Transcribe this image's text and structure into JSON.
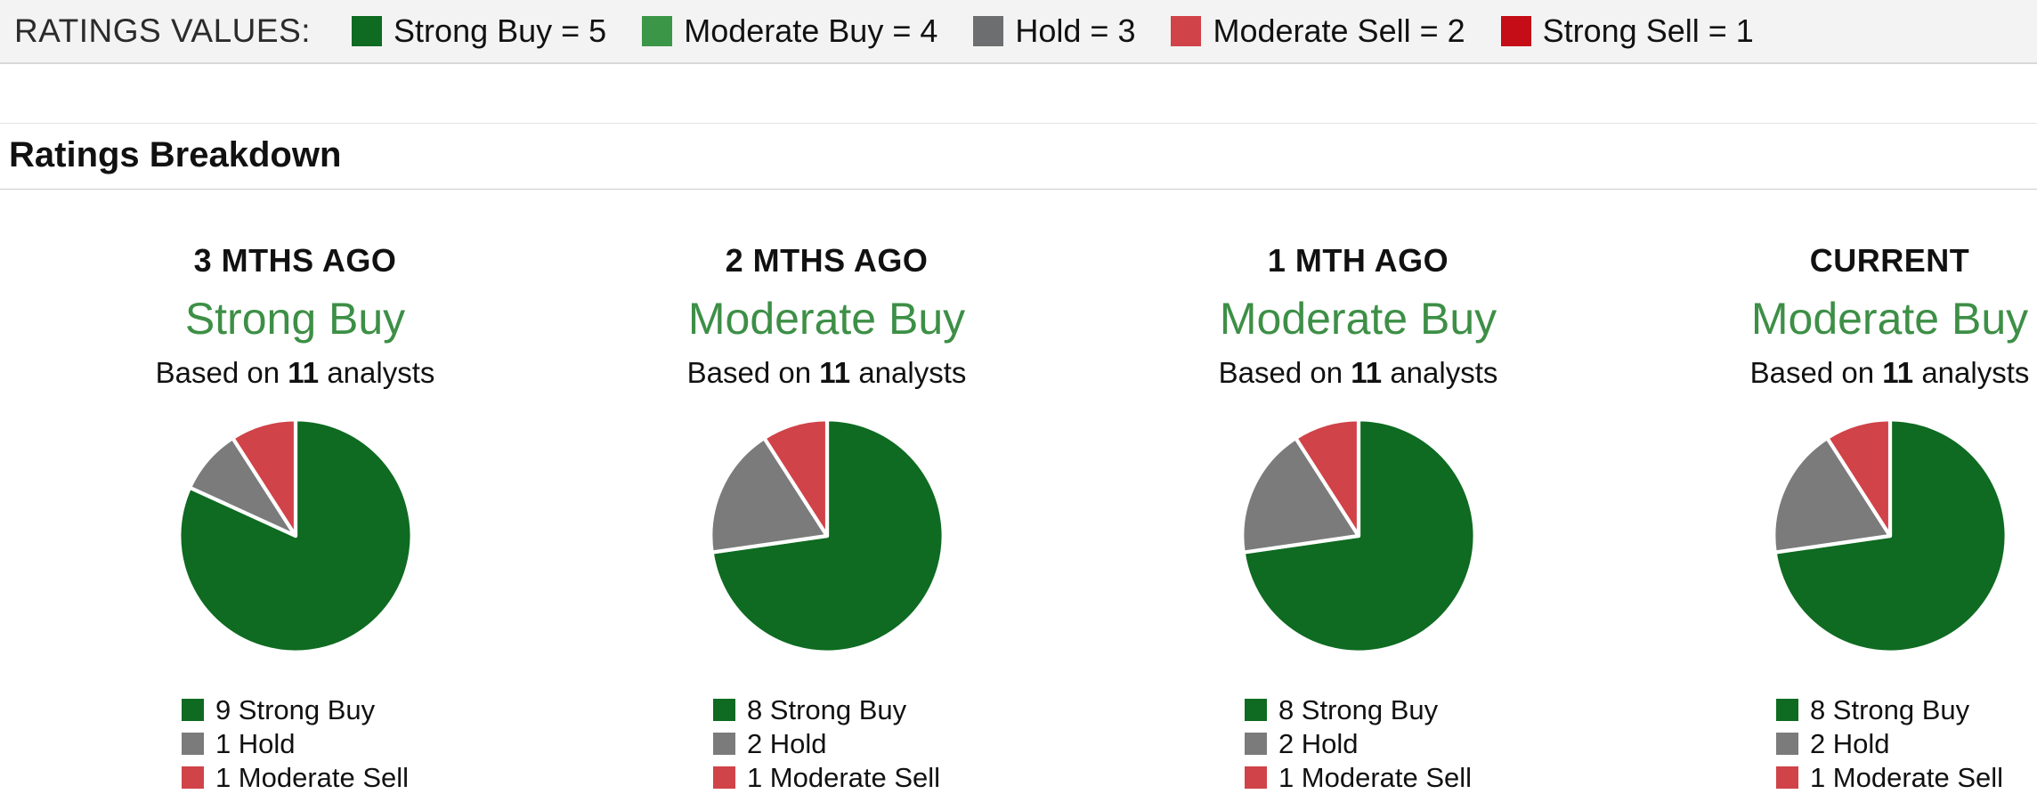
{
  "ratings_values_bar": {
    "label": "RATINGS VALUES:",
    "items": [
      {
        "name": "strong-buy",
        "label": "Strong Buy = 5",
        "color": "#0e6b21"
      },
      {
        "name": "moderate-buy",
        "label": "Moderate Buy = 4",
        "color": "#3c9647"
      },
      {
        "name": "hold",
        "label": "Hold = 3",
        "color": "#6d6e70"
      },
      {
        "name": "moderate-sell",
        "label": "Moderate Sell = 2",
        "color": "#d04349"
      },
      {
        "name": "strong-sell",
        "label": "Strong Sell = 1",
        "color": "#c40d17"
      }
    ]
  },
  "section": {
    "title": "Ratings Breakdown"
  },
  "chart_data": [
    {
      "type": "pie",
      "period": "3 MTHS AGO",
      "consensus": "Strong Buy",
      "consensus_color": "#3d8f46",
      "analysts_prefix": "Based on",
      "analysts_count": "11",
      "analysts_suffix": "analysts",
      "legend_position": "bottom",
      "slices": [
        {
          "label": "9 Strong Buy",
          "value": 9,
          "color": "#0e6b21"
        },
        {
          "label": "1 Hold",
          "value": 1,
          "color": "#7b7b7b"
        },
        {
          "label": "1 Moderate Sell",
          "value": 1,
          "color": "#d04349"
        }
      ]
    },
    {
      "type": "pie",
      "period": "2 MTHS AGO",
      "consensus": "Moderate Buy",
      "consensus_color": "#3d8f46",
      "analysts_prefix": "Based on",
      "analysts_count": "11",
      "analysts_suffix": "analysts",
      "legend_position": "bottom",
      "slices": [
        {
          "label": "8 Strong Buy",
          "value": 8,
          "color": "#0e6b21"
        },
        {
          "label": "2 Hold",
          "value": 2,
          "color": "#7b7b7b"
        },
        {
          "label": "1 Moderate Sell",
          "value": 1,
          "color": "#d04349"
        }
      ]
    },
    {
      "type": "pie",
      "period": "1 MTH AGO",
      "consensus": "Moderate Buy",
      "consensus_color": "#3d8f46",
      "analysts_prefix": "Based on",
      "analysts_count": "11",
      "analysts_suffix": "analysts",
      "legend_position": "bottom",
      "slices": [
        {
          "label": "8 Strong Buy",
          "value": 8,
          "color": "#0e6b21"
        },
        {
          "label": "2 Hold",
          "value": 2,
          "color": "#7b7b7b"
        },
        {
          "label": "1 Moderate Sell",
          "value": 1,
          "color": "#d04349"
        }
      ]
    },
    {
      "type": "pie",
      "period": "CURRENT",
      "consensus": "Moderate Buy",
      "consensus_color": "#3d8f46",
      "analysts_prefix": "Based on",
      "analysts_count": "11",
      "analysts_suffix": "analysts",
      "legend_position": "bottom",
      "slices": [
        {
          "label": "8 Strong Buy",
          "value": 8,
          "color": "#0e6b21"
        },
        {
          "label": "2 Hold",
          "value": 2,
          "color": "#7b7b7b"
        },
        {
          "label": "1 Moderate Sell",
          "value": 1,
          "color": "#d04349"
        }
      ]
    }
  ]
}
